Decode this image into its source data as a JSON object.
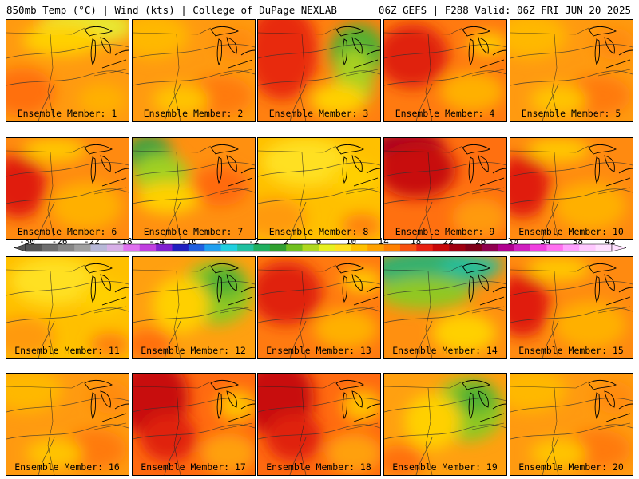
{
  "header": {
    "title_left": "850mb Temp (°C) | Wind (kts) | College of DuPage NEXLAB",
    "title_right": "06Z GEFS | F288 Valid: 06Z FRI JUN 20 2025"
  },
  "panels": [
    {
      "label": "Ensemble Member: 1",
      "theme": "warm-n-yellow"
    },
    {
      "label": "Ensemble Member: 2",
      "theme": "orange"
    },
    {
      "label": "Ensemble Member: 3",
      "theme": "red-w-green-e"
    },
    {
      "label": "Ensemble Member: 4",
      "theme": "red-orange"
    },
    {
      "label": "Ensemble Member: 5",
      "theme": "orange"
    },
    {
      "label": "Ensemble Member: 6",
      "theme": "red-w"
    },
    {
      "label": "Ensemble Member: 7",
      "theme": "green-nw"
    },
    {
      "label": "Ensemble Member: 8",
      "theme": "yellow"
    },
    {
      "label": "Ensemble Member: 9",
      "theme": "hot"
    },
    {
      "label": "Ensemble Member: 10",
      "theme": "red-w"
    },
    {
      "label": "Ensemble Member: 11",
      "theme": "yellow"
    },
    {
      "label": "Ensemble Member: 12",
      "theme": "green-ne"
    },
    {
      "label": "Ensemble Member: 13",
      "theme": "red-orange"
    },
    {
      "label": "Ensemble Member: 14",
      "theme": "cool-n"
    },
    {
      "label": "Ensemble Member: 15",
      "theme": "red-w"
    },
    {
      "label": "Ensemble Member: 16",
      "theme": "orange"
    },
    {
      "label": "Ensemble Member: 17",
      "theme": "red-nw"
    },
    {
      "label": "Ensemble Member: 18",
      "theme": "red-nw"
    },
    {
      "label": "Ensemble Member: 19",
      "theme": "green-ne"
    },
    {
      "label": "Ensemble Member: 20",
      "theme": "orange"
    }
  ],
  "colorbar": {
    "tick_labels": [
      "-30",
      "-26",
      "-22",
      "-18",
      "-14",
      "-10",
      "-6",
      "-2",
      "2",
      "6",
      "10",
      "14",
      "18",
      "22",
      "26",
      "30",
      "34",
      "38",
      "42"
    ],
    "colors": [
      "#555555",
      "#6e6e6e",
      "#878787",
      "#a0a0a0",
      "#b8b8d8",
      "#d8b0e8",
      "#e070f0",
      "#c040e0",
      "#8020d0",
      "#2020c0",
      "#2060e0",
      "#20a0f0",
      "#20d0e0",
      "#20c0a0",
      "#20b060",
      "#30a030",
      "#70c020",
      "#b0d820",
      "#e8f020",
      "#ffe020",
      "#ffc000",
      "#ffa000",
      "#ff8000",
      "#f85010",
      "#e82010",
      "#c80808",
      "#a00010",
      "#800018",
      "#900050",
      "#b00090",
      "#d020c0",
      "#f040e0",
      "#ff70f0",
      "#ffa0ff",
      "#ffc8ff",
      "#ffe0ff"
    ]
  }
}
